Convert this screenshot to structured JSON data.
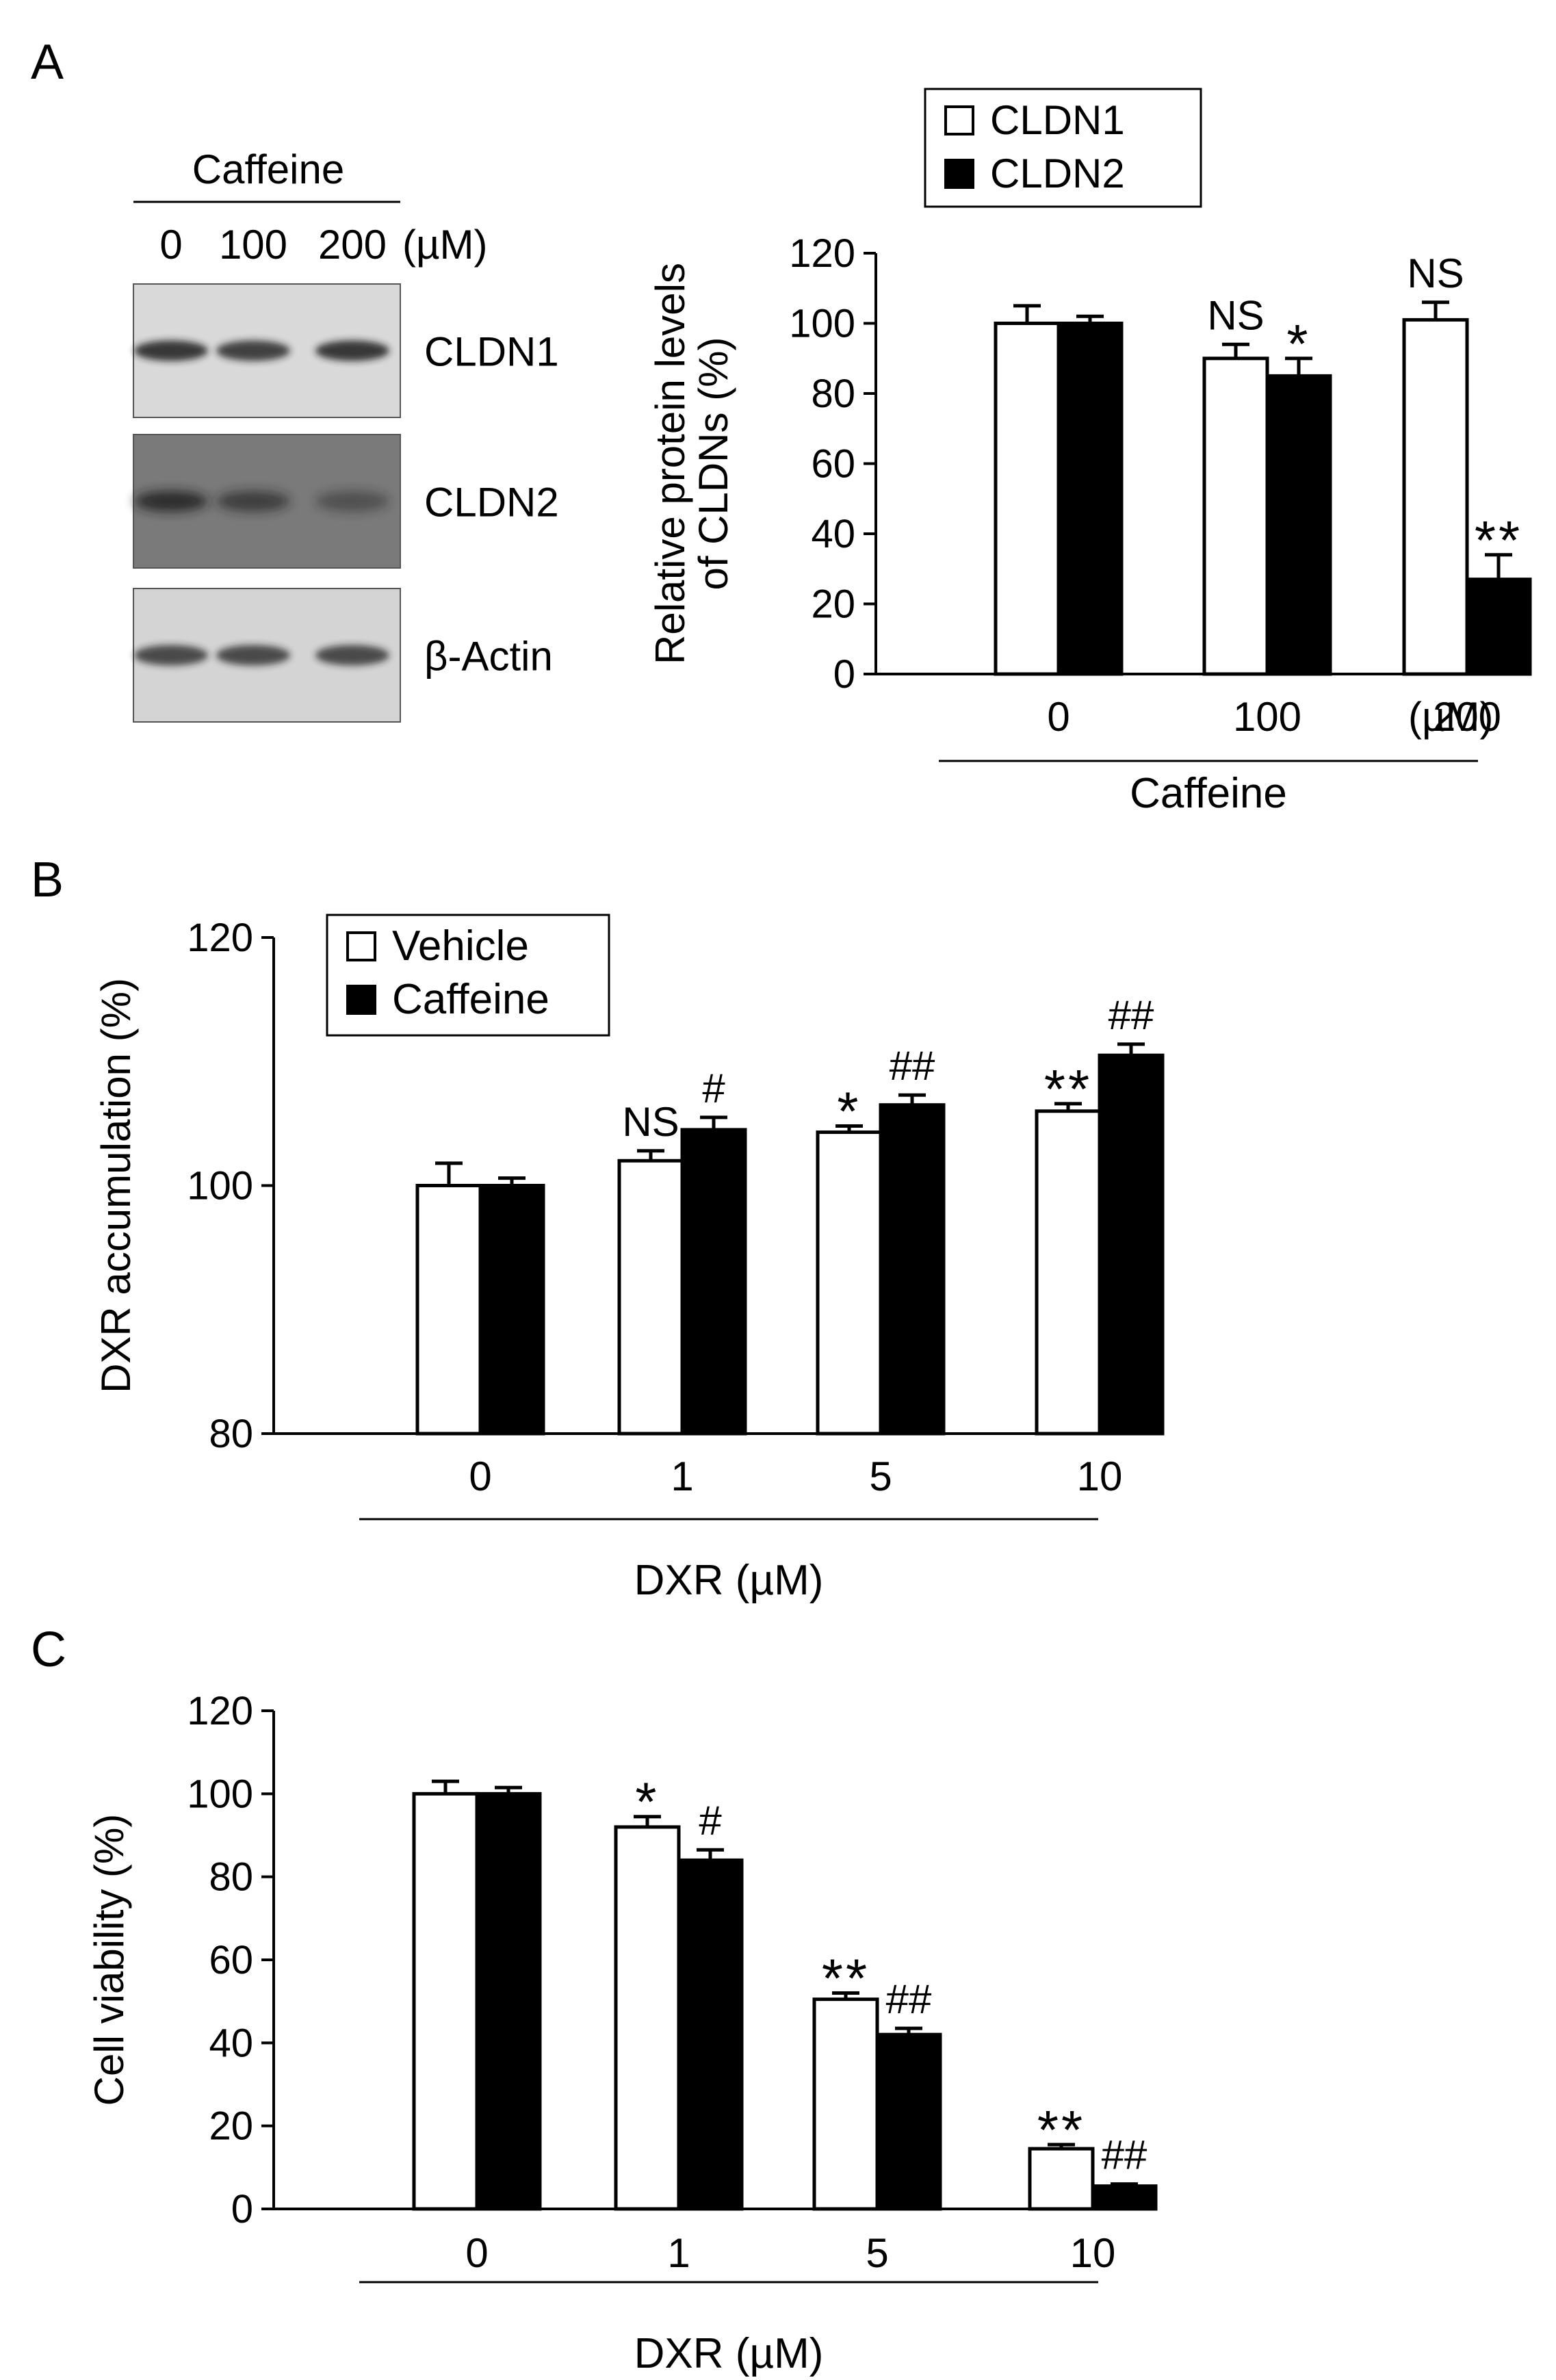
{
  "panels": {
    "A": {
      "letter": "A",
      "blot": {
        "treatment": "Caffeine",
        "doses": [
          "0",
          "100",
          "200"
        ],
        "unit": "(µM)",
        "rows": [
          {
            "label": "CLDN1",
            "bands": [
              0.85,
              0.8,
              0.85
            ],
            "bg": "#d9d9d9",
            "sharp": true
          },
          {
            "label": "CLDN2",
            "bands": [
              0.85,
              0.65,
              0.45
            ],
            "bg": "#7a7a7a",
            "sharp": false
          },
          {
            "label": "β-Actin",
            "bands": [
              0.75,
              0.75,
              0.75
            ],
            "bg": "#d4d4d4",
            "sharp": true
          }
        ]
      }
    },
    "B": {
      "letter": "B"
    },
    "C": {
      "letter": "C"
    }
  },
  "colors": {
    "open_bar": "#ffffff",
    "filled_bar": "#000000",
    "axis": "#000000",
    "blot_band": "#1a1a1a"
  },
  "chart_data": [
    {
      "id": "A",
      "type": "bar",
      "categories": [
        "0",
        "100",
        "200"
      ],
      "category_unit": "(µM)",
      "group_label": "Caffeine",
      "ylabel": [
        "Relative protein levels",
        "of CLDNs (%)"
      ],
      "ylim": [
        0,
        120
      ],
      "yticks": [
        0,
        20,
        40,
        60,
        80,
        100,
        120
      ],
      "legend_placement": "top-right",
      "series": [
        {
          "name": "CLDN1",
          "fill": "open",
          "values": [
            100,
            90,
            101
          ],
          "errors": [
            5,
            4,
            5
          ],
          "annotations": [
            "",
            "NS",
            "NS"
          ]
        },
        {
          "name": "CLDN2",
          "fill": "filled",
          "values": [
            100,
            85,
            27
          ],
          "errors": [
            2,
            5,
            7
          ],
          "annotations": [
            "",
            "*",
            "**"
          ]
        }
      ]
    },
    {
      "id": "B",
      "type": "bar",
      "categories": [
        "0",
        "1",
        "5",
        "10"
      ],
      "category_unit": "",
      "group_label": "DXR (µM)",
      "ylabel": [
        "DXR accumulation  (%)"
      ],
      "ylim": [
        80,
        120
      ],
      "yticks": [
        80,
        100,
        120
      ],
      "legend_placement": "top-left",
      "series": [
        {
          "name": "Vehicle",
          "fill": "open",
          "values": [
            100,
            102,
            104.3,
            106
          ],
          "errors": [
            1.8,
            0.8,
            0.5,
            0.6
          ],
          "annotations": [
            "",
            "NS",
            "*",
            "**"
          ]
        },
        {
          "name": "Caffeine",
          "fill": "filled",
          "values": [
            100,
            104.5,
            106.5,
            110.5
          ],
          "errors": [
            0.6,
            1.0,
            0.8,
            0.9
          ],
          "annotations": [
            "",
            "#",
            "##",
            "##"
          ]
        }
      ]
    },
    {
      "id": "C",
      "type": "bar",
      "categories": [
        "0",
        "1",
        "5",
        "10"
      ],
      "category_unit": "",
      "group_label": "DXR (µM)",
      "ylabel": [
        "Cell viability  (%)"
      ],
      "ylim": [
        0,
        120
      ],
      "yticks": [
        0,
        20,
        40,
        60,
        80,
        100,
        120
      ],
      "legend_placement": "none",
      "series": [
        {
          "name": "",
          "fill": "open",
          "values": [
            100,
            92,
            50.5,
            14.5
          ],
          "errors": [
            3,
            2.5,
            1.5,
            1
          ],
          "annotations": [
            "",
            "*",
            "**",
            "**"
          ]
        },
        {
          "name": "",
          "fill": "filled",
          "values": [
            100,
            84,
            42,
            5.5
          ],
          "errors": [
            1.5,
            2.5,
            1.5,
            0.5
          ],
          "annotations": [
            "",
            "#",
            "##",
            "##"
          ]
        }
      ]
    }
  ]
}
